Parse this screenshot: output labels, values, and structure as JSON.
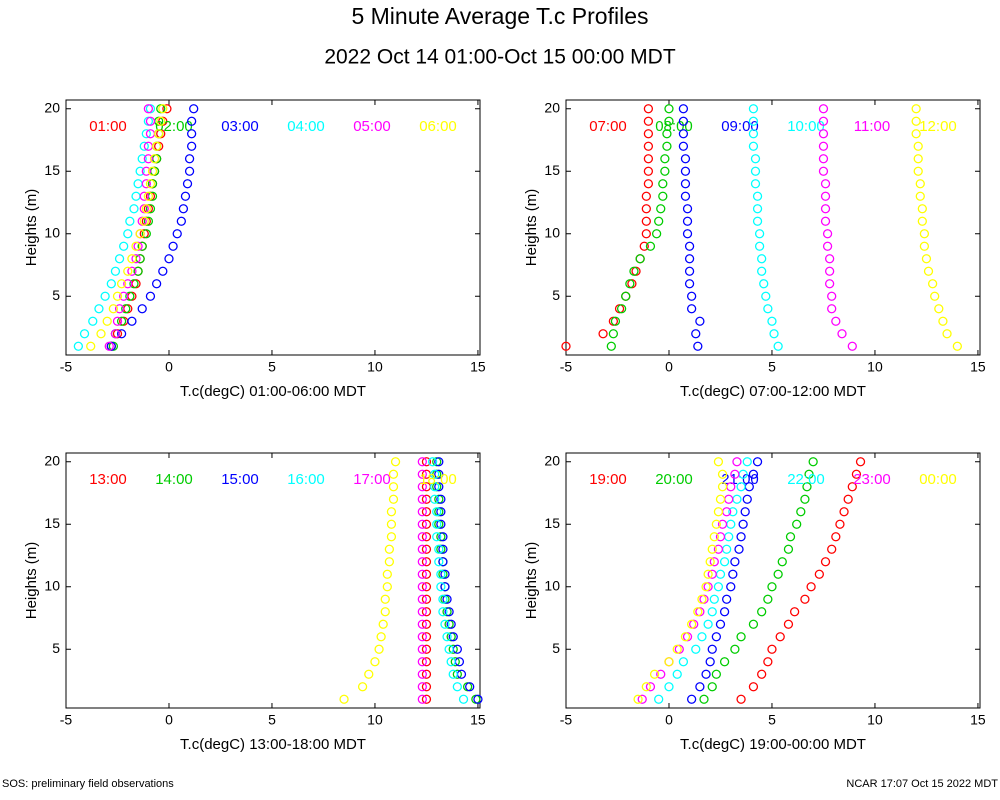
{
  "header": {
    "title": "5 Minute Average T.c Profiles",
    "subtitle": "2022 Oct 14 01:00-Oct 15 00:00 MDT"
  },
  "footer": {
    "left": "SOS: preliminary field observations",
    "right": "NCAR 17:07 Oct 15 2022 MDT"
  },
  "chart_data": [
    {
      "type": "scatter",
      "xlabel": "T.c(degC) 01:00-06:00 MDT",
      "ylabel": "Heights (m)",
      "xlim": [
        -5,
        15.1
      ],
      "ylim": [
        0.3,
        20.7
      ],
      "xticks": [
        -5,
        0,
        5,
        10,
        15
      ],
      "yticks": [
        5,
        10,
        15,
        20
      ],
      "y": [
        1,
        2,
        3,
        4,
        5,
        6,
        7,
        8,
        9,
        10,
        11,
        12,
        13,
        14,
        15,
        16,
        17,
        18,
        19,
        20
      ],
      "series": [
        {
          "name": "01:00",
          "color": "#ff0000",
          "x": [
            -2.8,
            -2.5,
            -2.2,
            -2.0,
            -1.8,
            -1.6,
            -1.5,
            -1.4,
            -1.3,
            -1.2,
            -1.1,
            -1.0,
            -0.9,
            -0.8,
            -0.7,
            -0.6,
            -0.5,
            -0.4,
            -0.3,
            -0.1
          ]
        },
        {
          "name": "02:00",
          "color": "#00cc00",
          "x": [
            -2.7,
            -2.6,
            -2.3,
            -2.1,
            -1.9,
            -1.7,
            -1.5,
            -1.4,
            -1.3,
            -1.1,
            -1.0,
            -0.9,
            -0.8,
            -0.8,
            -0.7,
            -0.6,
            -0.6,
            -0.5,
            -0.5,
            -0.4
          ]
        },
        {
          "name": "03:00",
          "color": "#0000ff",
          "x": [
            -2.8,
            -2.3,
            -1.8,
            -1.3,
            -0.9,
            -0.6,
            -0.3,
            0.0,
            0.2,
            0.4,
            0.6,
            0.7,
            0.8,
            0.9,
            1.0,
            1.0,
            1.1,
            1.1,
            1.1,
            1.2
          ]
        },
        {
          "name": "04:00",
          "color": "#00ffff",
          "x": [
            -4.4,
            -4.1,
            -3.7,
            -3.4,
            -3.1,
            -2.8,
            -2.6,
            -2.4,
            -2.2,
            -2.0,
            -1.9,
            -1.7,
            -1.6,
            -1.5,
            -1.4,
            -1.3,
            -1.2,
            -1.1,
            -1.0,
            -0.9
          ]
        },
        {
          "name": "05:00",
          "color": "#ff00ff",
          "x": [
            -2.9,
            -2.6,
            -2.5,
            -2.4,
            -2.2,
            -2.0,
            -1.8,
            -1.6,
            -1.5,
            -1.4,
            -1.3,
            -1.2,
            -1.2,
            -1.1,
            -1.1,
            -1.0,
            -1.0,
            -0.9,
            -0.9,
            -1.0
          ]
        },
        {
          "name": "06:00",
          "color": "#ffff00",
          "x": [
            -3.8,
            -3.3,
            -3.0,
            -2.7,
            -2.5,
            -2.3,
            -2.0,
            -1.8,
            -1.6,
            -1.4,
            -1.2,
            -1.1,
            -1.0,
            -0.9,
            -0.8,
            -0.7,
            -0.6,
            -0.5,
            -0.4,
            -0.3
          ]
        }
      ]
    },
    {
      "type": "scatter",
      "xlabel": "T.c(degC) 07:00-12:00 MDT",
      "ylabel": "Heights (m)",
      "xlim": [
        -5,
        15.1
      ],
      "ylim": [
        0.3,
        20.7
      ],
      "xticks": [
        -5,
        0,
        5,
        10,
        15
      ],
      "yticks": [
        5,
        10,
        15,
        20
      ],
      "y": [
        1,
        2,
        3,
        4,
        5,
        6,
        7,
        8,
        9,
        10,
        11,
        12,
        13,
        14,
        15,
        16,
        17,
        18,
        19,
        20
      ],
      "series": [
        {
          "name": "07:00",
          "color": "#ff0000",
          "x": [
            -5.0,
            -3.2,
            -2.7,
            -2.4,
            -2.1,
            -1.8,
            -1.6,
            -1.4,
            -1.2,
            -1.1,
            -1.1,
            -1.1,
            -1.1,
            -1.0,
            -1.0,
            -1.0,
            -1.0,
            -1.0,
            -1.0,
            -1.0
          ]
        },
        {
          "name": "08:00",
          "color": "#00cc00",
          "x": [
            -2.8,
            -2.7,
            -2.6,
            -2.3,
            -2.1,
            -1.9,
            -1.7,
            -1.4,
            -0.9,
            -0.6,
            -0.5,
            -0.4,
            -0.3,
            -0.3,
            -0.2,
            -0.2,
            -0.1,
            -0.1,
            0.0,
            0.0
          ]
        },
        {
          "name": "09:00",
          "color": "#0000ff",
          "x": [
            1.4,
            1.3,
            1.5,
            1.1,
            1.1,
            1.0,
            1.0,
            1.0,
            1.0,
            0.9,
            0.9,
            0.9,
            0.8,
            0.8,
            0.8,
            0.8,
            0.7,
            0.7,
            0.7,
            0.7
          ]
        },
        {
          "name": "10:00",
          "color": "#00ffff",
          "x": [
            5.3,
            5.1,
            5.0,
            4.8,
            4.7,
            4.6,
            4.5,
            4.5,
            4.4,
            4.4,
            4.3,
            4.3,
            4.3,
            4.2,
            4.2,
            4.2,
            4.1,
            4.1,
            4.1,
            4.1
          ]
        },
        {
          "name": "11:00",
          "color": "#ff00ff",
          "x": [
            8.9,
            8.4,
            8.1,
            7.9,
            7.9,
            7.8,
            7.8,
            7.8,
            7.7,
            7.7,
            7.6,
            7.6,
            7.6,
            7.6,
            7.5,
            7.5,
            7.5,
            7.5,
            7.5,
            7.5
          ]
        },
        {
          "name": "12:00",
          "color": "#ffff00",
          "x": [
            14.0,
            13.5,
            13.3,
            13.1,
            12.9,
            12.8,
            12.6,
            12.5,
            12.4,
            12.4,
            12.3,
            12.3,
            12.2,
            12.2,
            12.1,
            12.1,
            12.1,
            12.0,
            12.0,
            12.0
          ]
        }
      ]
    },
    {
      "type": "scatter",
      "xlabel": "T.c(degC) 13:00-18:00 MDT",
      "ylabel": "Heights (m)",
      "xlim": [
        -5,
        15.1
      ],
      "ylim": [
        0.3,
        20.7
      ],
      "xticks": [
        -5,
        0,
        5,
        10,
        15
      ],
      "yticks": [
        5,
        10,
        15,
        20
      ],
      "y": [
        1,
        2,
        3,
        4,
        5,
        6,
        7,
        8,
        9,
        10,
        11,
        12,
        13,
        14,
        15,
        16,
        17,
        18,
        19,
        20
      ],
      "series": [
        {
          "name": "13:00",
          "color": "#ff0000",
          "x": [
            12.5,
            12.5,
            12.5,
            12.5,
            12.5,
            12.5,
            12.5,
            12.5,
            12.5,
            12.5,
            12.5,
            12.5,
            12.5,
            12.5,
            12.5,
            12.5,
            12.5,
            12.5,
            12.5,
            12.5
          ]
        },
        {
          "name": "14:00",
          "color": "#00cc00",
          "x": [
            14.9,
            14.5,
            14.0,
            13.9,
            13.8,
            13.7,
            13.6,
            13.5,
            13.4,
            13.4,
            13.3,
            13.3,
            13.2,
            13.2,
            13.1,
            13.1,
            13.1,
            13.0,
            13.0,
            13.0
          ]
        },
        {
          "name": "15:00",
          "color": "#0000ff",
          "x": [
            15.0,
            14.6,
            14.2,
            14.1,
            14.0,
            13.8,
            13.7,
            13.6,
            13.5,
            13.4,
            13.4,
            13.3,
            13.3,
            13.3,
            13.2,
            13.2,
            13.2,
            13.1,
            13.1,
            13.1
          ]
        },
        {
          "name": "16:00",
          "color": "#00ffff",
          "x": [
            14.3,
            14.0,
            13.8,
            13.7,
            13.6,
            13.5,
            13.4,
            13.3,
            13.3,
            13.2,
            13.2,
            13.1,
            13.1,
            13.0,
            13.0,
            13.0,
            12.9,
            12.9,
            12.9,
            12.8
          ]
        },
        {
          "name": "17:00",
          "color": "#ff00ff",
          "x": [
            12.3,
            12.3,
            12.3,
            12.3,
            12.3,
            12.3,
            12.3,
            12.3,
            12.3,
            12.3,
            12.3,
            12.3,
            12.3,
            12.3,
            12.3,
            12.3,
            12.3,
            12.3,
            12.3,
            12.3
          ]
        },
        {
          "name": "18:00",
          "color": "#ffff00",
          "x": [
            8.5,
            9.4,
            9.7,
            10.0,
            10.2,
            10.3,
            10.4,
            10.5,
            10.5,
            10.6,
            10.6,
            10.7,
            10.7,
            10.8,
            10.8,
            10.8,
            10.9,
            10.9,
            10.9,
            11.0
          ]
        }
      ]
    },
    {
      "type": "scatter",
      "xlabel": "T.c(degC) 19:00-00:00 MDT",
      "ylabel": "Heights (m)",
      "xlim": [
        -5,
        15.1
      ],
      "ylim": [
        0.3,
        20.7
      ],
      "xticks": [
        -5,
        0,
        5,
        10,
        15
      ],
      "yticks": [
        5,
        10,
        15,
        20
      ],
      "y": [
        1,
        2,
        3,
        4,
        5,
        6,
        7,
        8,
        9,
        10,
        11,
        12,
        13,
        14,
        15,
        16,
        17,
        18,
        19,
        20
      ],
      "series": [
        {
          "name": "19:00",
          "color": "#ff0000",
          "x": [
            3.5,
            4.1,
            4.5,
            4.8,
            5.0,
            5.4,
            5.8,
            6.1,
            6.6,
            6.9,
            7.3,
            7.6,
            7.9,
            8.1,
            8.3,
            8.5,
            8.7,
            8.9,
            9.1,
            9.3
          ]
        },
        {
          "name": "20:00",
          "color": "#00cc00",
          "x": [
            1.7,
            2.1,
            2.3,
            2.7,
            3.2,
            3.5,
            4.1,
            4.5,
            4.8,
            5.0,
            5.3,
            5.5,
            5.8,
            5.9,
            6.2,
            6.4,
            6.6,
            6.7,
            6.8,
            7.0
          ]
        },
        {
          "name": "21:00",
          "color": "#0000ff",
          "x": [
            1.1,
            1.5,
            1.8,
            2.0,
            2.1,
            2.3,
            2.5,
            2.7,
            2.8,
            3.0,
            3.1,
            3.2,
            3.4,
            3.5,
            3.6,
            3.7,
            3.8,
            3.9,
            4.1,
            4.3
          ]
        },
        {
          "name": "22:00",
          "color": "#00ffff",
          "x": [
            -0.5,
            0.0,
            0.4,
            0.7,
            1.3,
            1.6,
            1.9,
            2.1,
            2.2,
            2.4,
            2.5,
            2.7,
            2.8,
            2.9,
            3.0,
            3.1,
            3.3,
            3.5,
            3.6,
            3.8
          ]
        },
        {
          "name": "23:00",
          "color": "#ff00ff",
          "x": [
            -1.3,
            -0.9,
            -0.4,
            0.0,
            0.5,
            0.9,
            1.2,
            1.5,
            1.7,
            1.9,
            2.1,
            2.2,
            2.4,
            2.5,
            2.6,
            2.8,
            2.9,
            3.0,
            3.2,
            3.3
          ]
        },
        {
          "name": "00:00",
          "color": "#ffff00",
          "x": [
            -1.5,
            -1.1,
            -0.7,
            0.0,
            0.4,
            0.8,
            1.1,
            1.4,
            1.6,
            1.8,
            1.9,
            2.0,
            2.1,
            2.2,
            2.3,
            2.4,
            2.5,
            2.6,
            2.6,
            2.4
          ]
        }
      ]
    }
  ]
}
